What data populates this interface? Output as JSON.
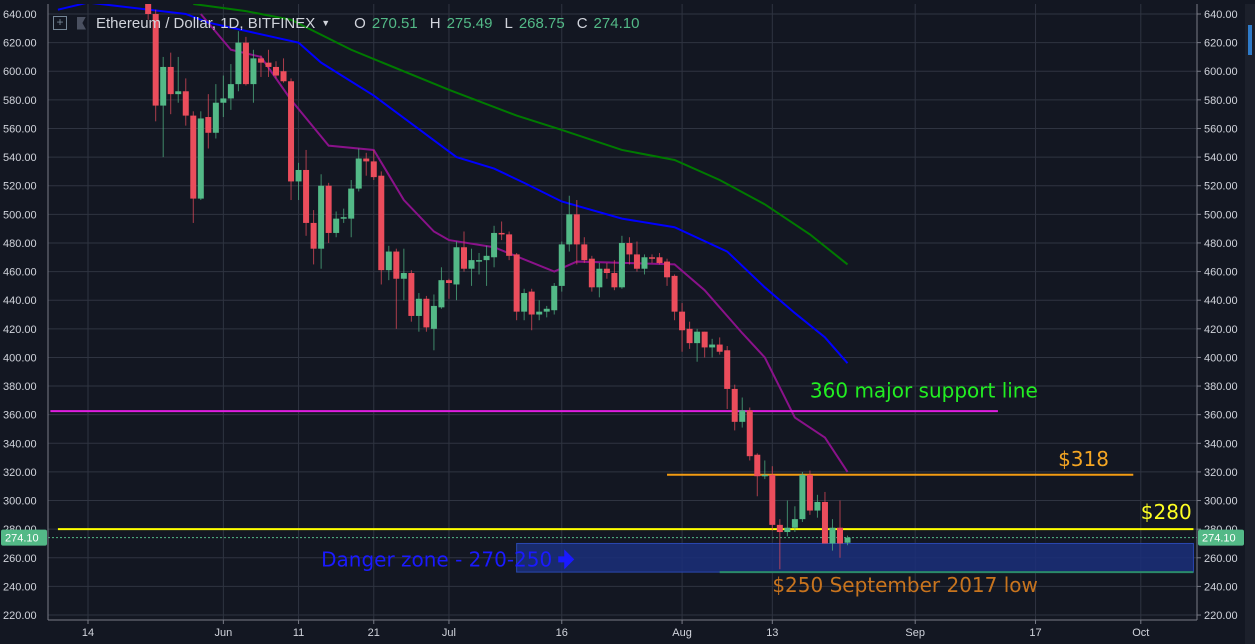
{
  "header": {
    "symbol_title": "Ethereum / Dollar, 1D, BITFINEX",
    "open_label": "O",
    "open": "270.51",
    "high_label": "H",
    "high": "275.49",
    "low_label": "L",
    "low": "268.75",
    "close_label": "C",
    "close": "274.10",
    "icons": [
      "crosshair-box-icon",
      "flag-icon",
      "caret-down-icon"
    ]
  },
  "colors": {
    "background": "#131722",
    "grid": "#2f3441",
    "up": "#53b987",
    "down": "#eb4d5c",
    "ma_fast": "#8a128a",
    "ma_mid": "#0000ff",
    "ma_slow": "#007a00"
  },
  "chart_data": {
    "type": "candlestick",
    "ylim": [
      220,
      640
    ],
    "y_ticks": [
      220,
      240,
      260,
      280,
      300,
      320,
      340,
      360,
      380,
      400,
      420,
      440,
      460,
      480,
      500,
      520,
      540,
      560,
      580,
      600,
      620,
      640
    ],
    "x_ticks": [
      {
        "label": "14",
        "date": "05-14"
      },
      {
        "label": "Jun",
        "date": "06-01"
      },
      {
        "label": "11",
        "date": "06-11"
      },
      {
        "label": "21",
        "date": "06-21"
      },
      {
        "label": "Jul",
        "date": "07-01"
      },
      {
        "label": "16",
        "date": "07-16"
      },
      {
        "label": "Aug",
        "date": "08-01"
      },
      {
        "label": "13",
        "date": "08-13"
      },
      {
        "label": "Sep",
        "date": "09-01"
      },
      {
        "label": "17",
        "date": "09-17"
      },
      {
        "label": "Oct",
        "date": "10-01"
      }
    ],
    "last_price": "274.10",
    "candles": [
      [
        "05-22",
        660,
        665,
        636,
        640
      ],
      [
        "05-23",
        640,
        643,
        565,
        576
      ],
      [
        "05-24",
        576,
        610,
        540,
        603
      ],
      [
        "05-25",
        603,
        613,
        570,
        584
      ],
      [
        "05-26",
        584,
        610,
        578,
        586
      ],
      [
        "05-27",
        586,
        595,
        562,
        569
      ],
      [
        "05-28",
        569,
        572,
        494,
        511
      ],
      [
        "05-29",
        511,
        572,
        510,
        567
      ],
      [
        "05-30",
        568,
        584,
        546,
        557
      ],
      [
        "05-31",
        557,
        591,
        553,
        578
      ],
      [
        "06-01",
        578,
        597,
        568,
        581
      ],
      [
        "06-02",
        581,
        605,
        573,
        591
      ],
      [
        "06-03",
        591,
        628,
        586,
        620
      ],
      [
        "06-04",
        620,
        624,
        590,
        591
      ],
      [
        "06-05",
        591,
        615,
        578,
        609
      ],
      [
        "06-06",
        609,
        611,
        596,
        606
      ],
      [
        "06-07",
        606,
        615,
        596,
        603
      ],
      [
        "06-08",
        603,
        607,
        595,
        597
      ],
      [
        "06-09",
        600,
        609,
        592,
        593
      ],
      [
        "06-10",
        593,
        595,
        510,
        523
      ],
      [
        "06-11",
        523,
        536,
        510,
        531
      ],
      [
        "06-12",
        531,
        545,
        485,
        494
      ],
      [
        "06-13",
        494,
        503,
        465,
        476
      ],
      [
        "06-14",
        476,
        528,
        462,
        520
      ],
      [
        "06-15",
        520,
        522,
        480,
        487
      ],
      [
        "06-16",
        487,
        502,
        484,
        497
      ],
      [
        "06-17",
        497,
        504,
        494,
        498
      ],
      [
        "06-18",
        497,
        524,
        484,
        518
      ],
      [
        "06-19",
        518,
        546,
        516,
        539
      ],
      [
        "06-20",
        539,
        543,
        527,
        537
      ],
      [
        "06-21",
        537,
        545,
        524,
        526
      ],
      [
        "06-22",
        527,
        530,
        451,
        461
      ],
      [
        "06-23",
        461,
        478,
        454,
        474
      ],
      [
        "06-24",
        474,
        476,
        420,
        455
      ],
      [
        "06-25",
        455,
        476,
        440,
        459
      ],
      [
        "06-26",
        459,
        461,
        425,
        429
      ],
      [
        "06-27",
        429,
        445,
        418,
        441
      ],
      [
        "06-28",
        441,
        443,
        418,
        421
      ],
      [
        "06-29",
        420,
        444,
        405,
        436
      ],
      [
        "06-30",
        435,
        463,
        434,
        454
      ],
      [
        "07-01",
        454,
        455,
        441,
        452
      ],
      [
        "07-02",
        451,
        481,
        440,
        477
      ],
      [
        "07-03",
        477,
        488,
        460,
        462
      ],
      [
        "07-04",
        462,
        476,
        450,
        468
      ],
      [
        "07-05",
        468,
        473,
        458,
        468
      ],
      [
        "07-06",
        468,
        478,
        450,
        471
      ],
      [
        "07-07",
        470,
        492,
        463,
        487
      ],
      [
        "07-08",
        487,
        495,
        482,
        486
      ],
      [
        "07-09",
        486,
        488,
        468,
        471
      ],
      [
        "07-10",
        472,
        473,
        426,
        432
      ],
      [
        "07-11",
        432,
        448,
        426,
        445
      ],
      [
        "07-12",
        446,
        448,
        419,
        430
      ],
      [
        "07-13",
        430,
        440,
        426,
        432
      ],
      [
        "07-14",
        432,
        436,
        428,
        434
      ],
      [
        "07-15",
        433,
        452,
        430,
        450
      ],
      [
        "07-16",
        450,
        481,
        446,
        479
      ],
      [
        "07-17",
        479,
        513,
        474,
        500
      ],
      [
        "07-18",
        500,
        510,
        465,
        479
      ],
      [
        "07-19",
        479,
        484,
        466,
        468
      ],
      [
        "07-20",
        469,
        471,
        446,
        449
      ],
      [
        "07-21",
        449,
        466,
        442,
        462
      ],
      [
        "07-22",
        462,
        466,
        455,
        459
      ],
      [
        "07-23",
        459,
        468,
        447,
        449
      ],
      [
        "07-24",
        449,
        485,
        448,
        480
      ],
      [
        "07-25",
        480,
        484,
        465,
        472
      ],
      [
        "07-26",
        472,
        481,
        460,
        462
      ],
      [
        "07-27",
        462,
        472,
        458,
        470
      ],
      [
        "07-28",
        470,
        472,
        466,
        469
      ],
      [
        "07-29",
        470,
        473,
        465,
        466
      ],
      [
        "07-30",
        467,
        469,
        450,
        456
      ],
      [
        "07-31",
        457,
        458,
        426,
        432
      ],
      [
        "08-01",
        432,
        438,
        404,
        419
      ],
      [
        "08-02",
        420,
        425,
        406,
        410
      ],
      [
        "08-03",
        410,
        420,
        397,
        418
      ],
      [
        "08-04",
        418,
        418,
        400,
        407
      ],
      [
        "08-05",
        407,
        413,
        400,
        409
      ],
      [
        "08-06",
        409,
        414,
        402,
        404
      ],
      [
        "08-07",
        405,
        408,
        364,
        378
      ],
      [
        "08-08",
        378,
        381,
        349,
        355
      ],
      [
        "08-09",
        355,
        372,
        351,
        363
      ],
      [
        "08-10",
        363,
        365,
        328,
        331
      ],
      [
        "08-11",
        332,
        333,
        303,
        317
      ],
      [
        "08-12",
        317,
        328,
        315,
        318
      ],
      [
        "08-13",
        318,
        324,
        279,
        283
      ],
      [
        "08-14",
        283,
        287,
        252,
        278
      ],
      [
        "08-15",
        278,
        300,
        275,
        281
      ],
      [
        "08-16",
        281,
        296,
        278,
        287
      ],
      [
        "08-17",
        287,
        320,
        285,
        318
      ],
      [
        "08-18",
        318,
        321,
        290,
        293
      ],
      [
        "08-19",
        293,
        304,
        288,
        299
      ],
      [
        "08-20",
        299,
        306,
        270,
        270
      ],
      [
        "08-21",
        270,
        287,
        265,
        281
      ],
      [
        "08-22",
        281,
        300,
        260,
        270
      ],
      [
        "08-23",
        270.51,
        275.49,
        268.75,
        274.1
      ]
    ],
    "moving_averages": [
      {
        "color": "#8a128a",
        "points": [
          [
            "05-29",
            640
          ],
          [
            "06-02",
            615
          ],
          [
            "06-06",
            610
          ],
          [
            "06-10",
            580
          ],
          [
            "06-15",
            548
          ],
          [
            "06-21",
            545
          ],
          [
            "06-25",
            510
          ],
          [
            "06-29",
            488
          ],
          [
            "07-01",
            482
          ],
          [
            "07-07",
            477
          ],
          [
            "07-15",
            460
          ],
          [
            "07-18",
            467
          ],
          [
            "07-31",
            465
          ],
          [
            "08-04",
            447
          ],
          [
            "08-09",
            417
          ],
          [
            "08-12",
            400
          ],
          [
            "08-16",
            358
          ],
          [
            "08-20",
            344
          ],
          [
            "08-23",
            320
          ]
        ]
      },
      {
        "color": "#0000ff",
        "points": [
          [
            "05-10",
            643
          ],
          [
            "05-14",
            648
          ],
          [
            "05-27",
            640
          ],
          [
            "05-30",
            634
          ],
          [
            "06-11",
            620
          ],
          [
            "06-14",
            606
          ],
          [
            "06-21",
            583
          ],
          [
            "07-02",
            540
          ],
          [
            "07-07",
            532
          ],
          [
            "07-11",
            522
          ],
          [
            "07-16",
            509
          ],
          [
            "07-24",
            497
          ],
          [
            "07-31",
            491
          ],
          [
            "08-07",
            474
          ],
          [
            "08-12",
            449
          ],
          [
            "08-16",
            431
          ],
          [
            "08-20",
            414
          ],
          [
            "08-23",
            396
          ]
        ]
      },
      {
        "color": "#007a00",
        "points": [
          [
            "05-28",
            647
          ],
          [
            "06-04",
            642
          ],
          [
            "06-10",
            636
          ],
          [
            "06-18",
            615
          ],
          [
            "07-01",
            587
          ],
          [
            "07-10",
            569
          ],
          [
            "07-16",
            559
          ],
          [
            "07-24",
            545
          ],
          [
            "07-31",
            538
          ],
          [
            "08-06",
            524
          ],
          [
            "08-12",
            507
          ],
          [
            "08-18",
            486
          ],
          [
            "08-23",
            465
          ]
        ]
      }
    ],
    "horizontal_lines": [
      {
        "price": 362.5,
        "from": "05-09",
        "to": "09-12",
        "color": "#e01ee0"
      },
      {
        "price": 318,
        "from": "07-30",
        "to": "09-30",
        "color": "#f39c12"
      },
      {
        "price": 280,
        "from": "05-10",
        "to": "10-08",
        "color": "#ffff00"
      },
      {
        "price": 250,
        "from": "08-06",
        "to": "10-08",
        "color": "#2a8a6a"
      }
    ],
    "zones": [
      {
        "from_price": 270,
        "to_price": 250,
        "from": "07-10",
        "to": "10-08",
        "color": "#1b2f7a"
      }
    ],
    "annotations": [
      {
        "text": "360 major support line",
        "color": "#22ee22",
        "price": 372,
        "date": "08-18"
      },
      {
        "text": "$318",
        "color": "#f5a623",
        "price": 324,
        "date": "09-20"
      },
      {
        "text": "$280",
        "color": "#ffff22",
        "price": 287,
        "date": "10-01"
      },
      {
        "text": "Danger zone - 270-250",
        "color": "#1a1aff",
        "price": 254,
        "date": "06-14",
        "arrow": true
      },
      {
        "text": "$250 September 2017 low",
        "color": "#c8741e",
        "price": 236,
        "date": "08-13"
      }
    ]
  }
}
